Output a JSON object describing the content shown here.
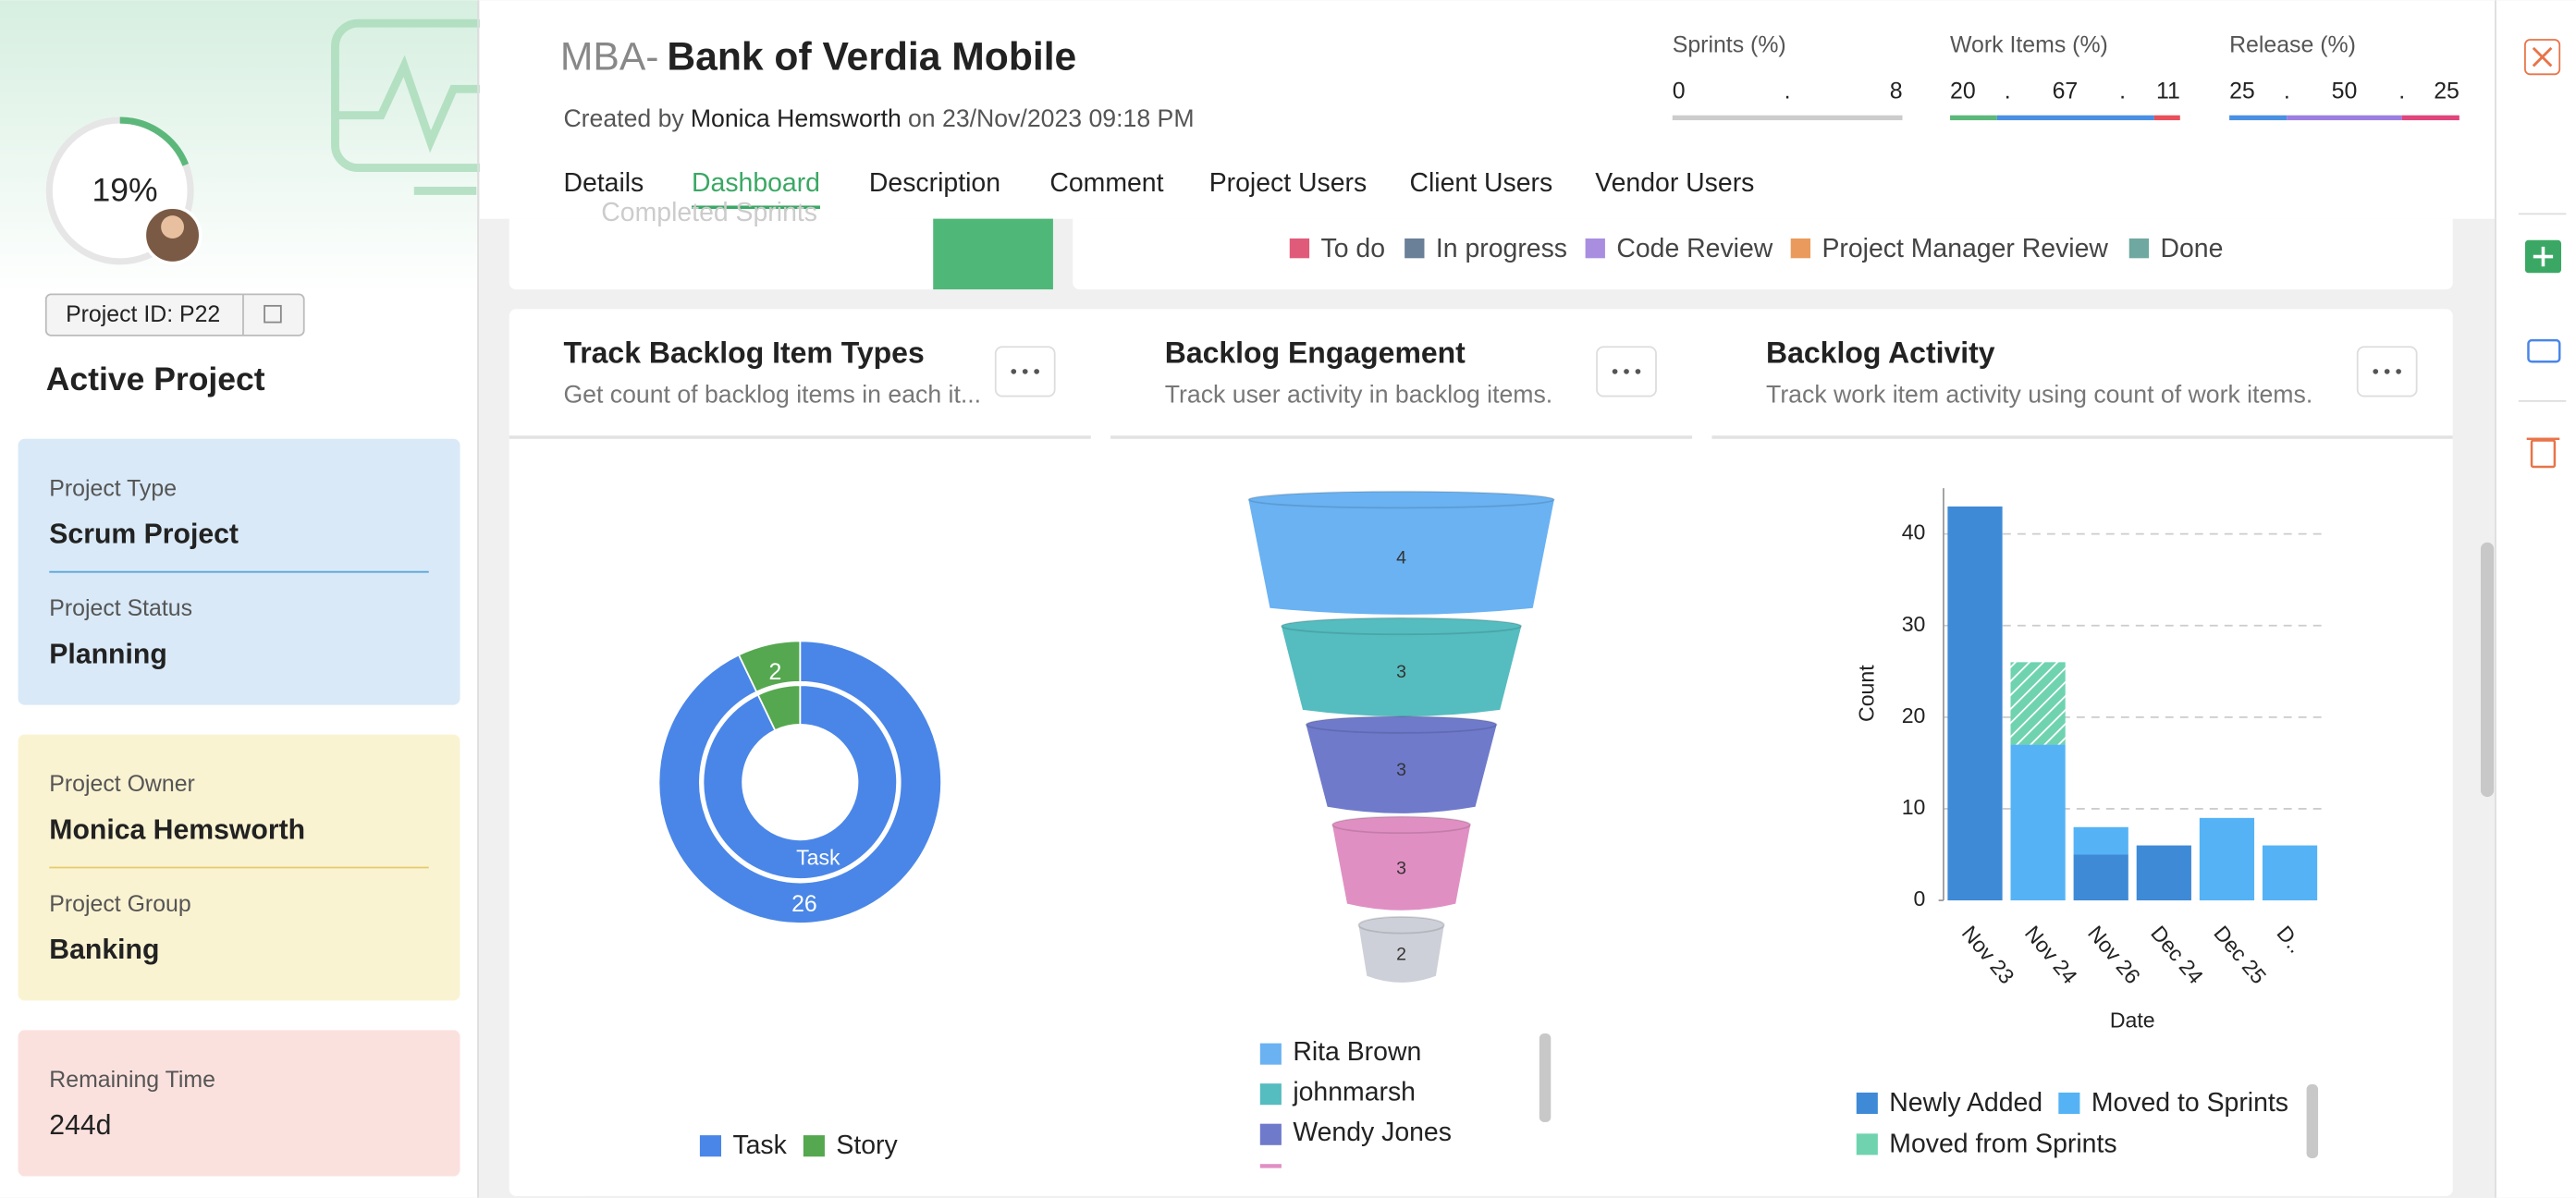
{
  "sidebar": {
    "progress": 19,
    "progress_label": "19%",
    "project_id": "Project ID: P22",
    "status_title": "Active Project",
    "fields": [
      {
        "label": "Project Type",
        "value": "Scrum Project"
      },
      {
        "label": "Project Status",
        "value": "Planning"
      },
      {
        "label": "Project Owner",
        "value": "Monica Hemsworth"
      },
      {
        "label": "Project Group",
        "value": "Banking"
      },
      {
        "label": "Remaining Time",
        "value": "244d"
      }
    ]
  },
  "header": {
    "prefix": "MBA-",
    "title": "Bank of Verdia Mobile",
    "created_prefix": "Created by",
    "creator": "Monica Hemsworth",
    "created_suffix": "on 23/Nov/2023 09:18 PM",
    "meters": [
      {
        "label": "Sprints (%)",
        "values": [
          0,
          8
        ],
        "separator": ".",
        "colors": [
          "#cccccc",
          "#cccccc"
        ]
      },
      {
        "label": "Work Items (%)",
        "values": [
          20,
          67,
          11
        ],
        "separator": ".",
        "colors": [
          "#5cb87a",
          "#4a90e2",
          "#e8505b"
        ]
      },
      {
        "label": "Release (%)",
        "values": [
          25,
          50,
          25
        ],
        "separator": ".",
        "colors": [
          "#4a90e2",
          "#9b7fe0",
          "#e0457b"
        ]
      }
    ]
  },
  "tabs": {
    "items": [
      "Details",
      "Dashboard",
      "Description",
      "Comment",
      "Project Users",
      "Client Users",
      "Vendor Users"
    ],
    "active": 1
  },
  "completed_sprints_label": "Completed Sprints",
  "status_legend": [
    {
      "label": "To do",
      "color": "#e05a7a"
    },
    {
      "label": "In progress",
      "color": "#6a7f98"
    },
    {
      "label": "Code Review",
      "color": "#a98ee0"
    },
    {
      "label": "Project Manager Review",
      "color": "#e99a5c"
    },
    {
      "label": "Done",
      "color": "#6fa8a0"
    }
  ],
  "panels": [
    {
      "title": "Track Backlog Item Types",
      "subtitle": "Get count of backlog items in each it...",
      "chart_data": {
        "type": "donut",
        "categories": [
          "Task",
          "Story"
        ],
        "values": [
          26,
          2
        ],
        "colors": [
          "#4a86e8",
          "#55a84f"
        ]
      }
    },
    {
      "title": "Backlog Engagement",
      "subtitle": "Track user activity in backlog items.",
      "chart_data": {
        "type": "funnel",
        "categories": [
          "Rita Brown",
          "johnmarsh",
          "Wendy Jones",
          null,
          null
        ],
        "values": [
          4,
          3,
          3,
          3,
          2
        ],
        "colors": [
          "#6ab2f2",
          "#55bcbf",
          "#6f7acb",
          "#e08fc3",
          "#cdd0d8"
        ]
      }
    },
    {
      "title": "Backlog Activity",
      "subtitle": "Track work item activity using count of work items.",
      "chart_data": {
        "type": "bar",
        "stacked": true,
        "categories": [
          "Nov 23",
          "Nov 24",
          "Nov 26",
          "Dec 24",
          "Dec 25",
          "D.."
        ],
        "series": [
          {
            "name": "Newly Added",
            "color": "#3f8ad6",
            "values": [
              43,
              0,
              5,
              6,
              0,
              0
            ]
          },
          {
            "name": "Moved to Sprints",
            "color": "#55b3f5",
            "values": [
              0,
              17,
              3,
              0,
              9,
              6
            ]
          },
          {
            "name": "Moved from Sprints",
            "color": "#6fd3b0",
            "hatched": true,
            "values": [
              0,
              9,
              0,
              0,
              0,
              0
            ]
          }
        ],
        "ylim": [
          0,
          45
        ],
        "yticks": [
          0,
          10,
          20,
          30,
          40
        ],
        "grid": true,
        "x_label": "Date",
        "y_label": "Count"
      }
    }
  ]
}
